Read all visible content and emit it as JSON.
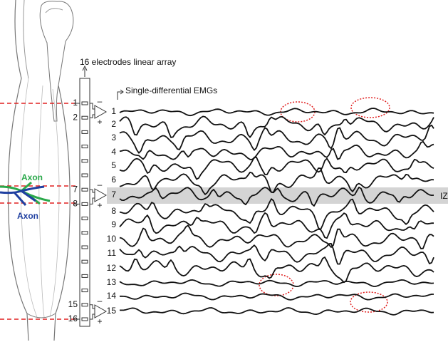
{
  "header": {
    "title": "16 electrodes linear array",
    "subtitle": "Single-differential EMGs"
  },
  "electrodes": [
    "1",
    "2",
    "7",
    "8",
    "15",
    "16"
  ],
  "channels": [
    "1",
    "2",
    "3",
    "4",
    "5",
    "6",
    "7",
    "8",
    "9",
    "10",
    "11",
    "12",
    "13",
    "14",
    "15"
  ],
  "axons": [
    "Axon",
    "Axon"
  ],
  "iz": "IZ",
  "signs": {
    "minus": "–",
    "plus": "+"
  }
}
